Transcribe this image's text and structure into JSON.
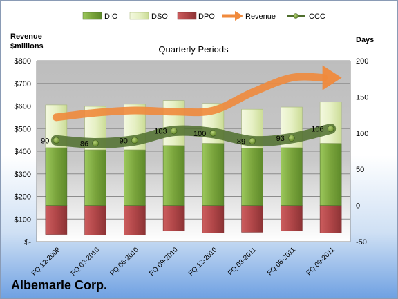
{
  "chart_data": {
    "type": "bar",
    "title": "Quarterly Periods",
    "company": "Albemarle Corp.",
    "left_axis_title": [
      "Revenue",
      "$millions"
    ],
    "right_axis_title": "Days",
    "categories": [
      "FQ 12-2009",
      "FQ 03-2010",
      "FQ 06-2010",
      "FQ 09-2010",
      "FQ 12-2010",
      "FQ 03-2011",
      "FQ 06-2011",
      "FQ 09-2011"
    ],
    "left_ticks": [
      "$-",
      "$100",
      "$200",
      "$300",
      "$400",
      "$500",
      "$600",
      "$700",
      "$800"
    ],
    "right_ticks": [
      "-50",
      "0",
      "50",
      "100",
      "150",
      "200"
    ],
    "left_ylim": [
      0,
      800
    ],
    "right_ylim": [
      -50,
      200
    ],
    "legend_position": "top",
    "series": [
      {
        "name": "DIO",
        "type": "stacked-bar",
        "axis": "right",
        "color": "#7aa43c",
        "values": [
          80,
          77,
          77,
          83,
          86,
          79,
          80,
          86
        ]
      },
      {
        "name": "DSO",
        "type": "stacked-bar",
        "axis": "right",
        "color": "#e6f0c4",
        "values": [
          59,
          60,
          63,
          62,
          55,
          54,
          56,
          57
        ]
      },
      {
        "name": "DPO",
        "type": "bar-below-zero",
        "axis": "right",
        "color": "#b04648",
        "values": [
          -40,
          -41,
          -41,
          -35,
          -38,
          -37,
          -35,
          -38
        ]
      },
      {
        "name": "Revenue",
        "type": "line",
        "axis": "left",
        "color": "#f08a3c",
        "values": [
          550,
          570,
          580,
          575,
          580,
          660,
          725,
          725
        ]
      },
      {
        "name": "CCC",
        "type": "line",
        "axis": "right",
        "color": "#4f6e2d",
        "values": [
          90,
          86,
          90,
          103,
          100,
          89,
          93,
          106
        ],
        "labels": [
          "90",
          "86",
          "90",
          "103",
          "100",
          "89",
          "93",
          "106"
        ]
      }
    ]
  }
}
